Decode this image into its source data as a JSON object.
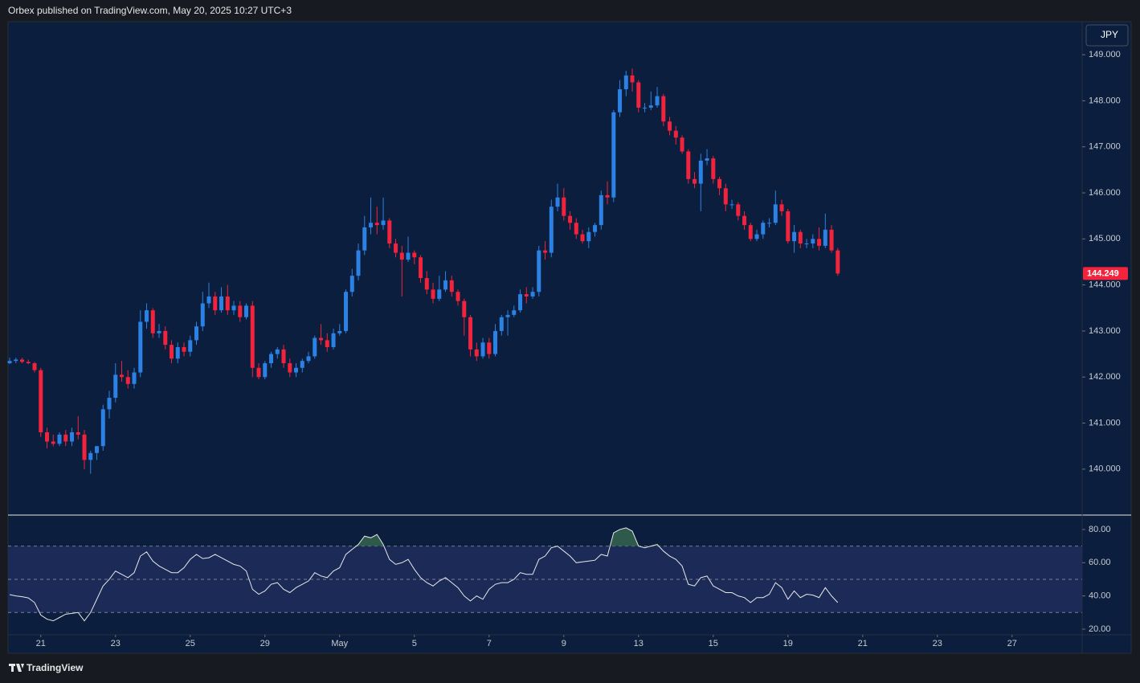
{
  "header": {
    "text": "Orbex published on TradingView.com, May 20, 2025 10:27 UTC+3"
  },
  "footer": {
    "brand": "TradingView"
  },
  "chart_data": [
    {
      "type": "candlestick",
      "currency": "JPY",
      "up_color": "#2b82e4",
      "down_color": "#f2233c",
      "xlim": [
        -0.26,
        172.25
      ],
      "ylim": [
        139.02,
        149.7
      ],
      "yticks": [
        {
          "value": 140,
          "label": "140.000"
        },
        {
          "value": 141,
          "label": "141.000"
        },
        {
          "value": 142,
          "label": "142.000"
        },
        {
          "value": 143,
          "label": "143.000"
        },
        {
          "value": 144,
          "label": "144.000"
        },
        {
          "value": 145,
          "label": "145.000"
        },
        {
          "value": 146,
          "label": "146.000"
        },
        {
          "value": 147,
          "label": "147.000"
        },
        {
          "value": 148,
          "label": "148.000"
        },
        {
          "value": 149,
          "label": "149.000"
        }
      ],
      "open": [
        142.3,
        142.35,
        142.38,
        142.33,
        142.3,
        142.15,
        140.8,
        140.6,
        140.55,
        140.75,
        140.6,
        140.8,
        140.75,
        140.2,
        140.35,
        140.5,
        141.3,
        141.55,
        142.05,
        142.0,
        141.85,
        142.1,
        143.2,
        143.45,
        142.95,
        143.0,
        142.7,
        142.4,
        142.65,
        142.55,
        142.8,
        143.1,
        143.6,
        143.75,
        143.45,
        143.75,
        143.45,
        143.55,
        143.3,
        143.55,
        142.2,
        142.0,
        142.3,
        142.5,
        142.6,
        142.3,
        142.1,
        142.2,
        142.35,
        142.45,
        142.85,
        142.8,
        142.65,
        142.95,
        143.0,
        143.85,
        144.2,
        144.75,
        145.25,
        145.35,
        145.3,
        145.4,
        144.9,
        144.7,
        144.55,
        144.7,
        144.6,
        144.15,
        143.9,
        143.7,
        143.9,
        144.1,
        143.85,
        143.65,
        143.3,
        142.6,
        142.45,
        142.75,
        142.5,
        143.0,
        143.3,
        143.35,
        143.45,
        143.8,
        143.75,
        143.85,
        144.75,
        144.7,
        145.7,
        145.9,
        145.5,
        145.35,
        145.1,
        144.95,
        145.15,
        145.3,
        145.95,
        145.9,
        147.75,
        148.25,
        148.55,
        148.4,
        147.85,
        147.85,
        147.9,
        148.1,
        147.55,
        147.35,
        147.2,
        146.9,
        146.3,
        146.2,
        146.7,
        146.75,
        146.3,
        146.1,
        145.75,
        145.75,
        145.5,
        145.3,
        145.0,
        145.1,
        145.35,
        145.35,
        145.75,
        145.6,
        144.95,
        145.15,
        144.9,
        144.9,
        145.0,
        144.85,
        145.2,
        144.75
      ],
      "high": [
        142.42,
        142.42,
        142.42,
        142.38,
        142.33,
        142.2,
        140.9,
        140.75,
        140.8,
        140.85,
        140.9,
        141.15,
        140.85,
        140.4,
        140.5,
        141.4,
        141.7,
        142.3,
        142.35,
        142.15,
        142.2,
        143.45,
        143.6,
        143.5,
        143.15,
        143.1,
        142.8,
        142.75,
        142.75,
        142.9,
        143.2,
        143.85,
        144.05,
        143.85,
        143.95,
        144.0,
        143.65,
        143.65,
        143.6,
        143.65,
        142.3,
        142.35,
        142.55,
        142.65,
        142.7,
        142.4,
        142.3,
        142.4,
        142.55,
        142.9,
        143.15,
        142.95,
        143.05,
        143.15,
        143.9,
        144.35,
        144.9,
        145.5,
        145.9,
        145.7,
        145.9,
        145.45,
        145.0,
        144.85,
        145.05,
        144.75,
        144.65,
        144.3,
        144.05,
        144.2,
        144.3,
        144.2,
        143.9,
        143.7,
        143.35,
        142.75,
        142.85,
        142.85,
        143.15,
        143.35,
        143.45,
        143.55,
        143.9,
        143.95,
        143.95,
        144.85,
        144.95,
        145.85,
        146.2,
        146.1,
        145.6,
        145.45,
        145.2,
        145.25,
        145.35,
        146.05,
        146.25,
        147.8,
        148.45,
        148.65,
        148.7,
        148.45,
        147.95,
        148.2,
        148.3,
        148.15,
        147.65,
        147.45,
        147.25,
        146.95,
        146.45,
        146.85,
        146.95,
        146.8,
        146.35,
        146.2,
        145.85,
        145.8,
        145.6,
        145.35,
        145.2,
        145.4,
        145.45,
        146.05,
        145.85,
        145.65,
        145.3,
        145.2,
        145.0,
        145.1,
        145.25,
        145.55,
        145.3,
        144.8
      ],
      "low": [
        142.28,
        142.3,
        142.3,
        142.28,
        142.1,
        140.7,
        140.45,
        140.5,
        140.5,
        140.5,
        140.5,
        140.65,
        140.0,
        139.9,
        140.2,
        140.4,
        141.1,
        141.45,
        141.9,
        141.75,
        141.75,
        142.0,
        143.05,
        142.85,
        142.85,
        142.6,
        142.3,
        142.3,
        142.45,
        142.45,
        142.7,
        143.0,
        143.5,
        143.35,
        143.4,
        143.35,
        143.35,
        143.2,
        143.25,
        142.0,
        141.95,
        141.95,
        142.2,
        142.4,
        142.2,
        142.0,
        142.0,
        142.1,
        142.3,
        142.4,
        142.7,
        142.55,
        142.6,
        142.9,
        142.95,
        143.75,
        144.1,
        144.65,
        145.1,
        145.1,
        145.2,
        144.8,
        144.6,
        143.75,
        144.5,
        144.45,
        144.05,
        143.8,
        143.6,
        143.65,
        143.85,
        143.75,
        143.55,
        142.9,
        142.45,
        142.35,
        142.4,
        142.4,
        142.45,
        142.9,
        142.9,
        143.3,
        143.4,
        143.6,
        143.7,
        143.75,
        144.55,
        144.6,
        145.6,
        145.4,
        145.2,
        145.0,
        144.9,
        144.8,
        145.05,
        145.2,
        145.75,
        145.8,
        147.65,
        148.1,
        148.2,
        147.75,
        147.75,
        147.8,
        147.85,
        147.45,
        147.25,
        147.05,
        146.85,
        146.2,
        146.1,
        145.6,
        146.6,
        146.2,
        145.95,
        145.6,
        145.65,
        145.4,
        145.2,
        144.95,
        144.95,
        145.0,
        145.25,
        145.3,
        145.5,
        144.9,
        144.7,
        144.8,
        144.8,
        144.8,
        144.75,
        144.8,
        144.7,
        144.2
      ],
      "close": [
        142.35,
        142.38,
        142.33,
        142.3,
        142.15,
        140.8,
        140.6,
        140.55,
        140.75,
        140.6,
        140.8,
        140.75,
        140.2,
        140.35,
        140.5,
        141.3,
        141.55,
        142.05,
        142.0,
        141.85,
        142.1,
        143.2,
        143.45,
        142.95,
        143.0,
        142.7,
        142.4,
        142.65,
        142.55,
        142.8,
        143.1,
        143.6,
        143.75,
        143.45,
        143.75,
        143.45,
        143.55,
        143.3,
        143.55,
        142.2,
        142.0,
        142.3,
        142.5,
        142.6,
        142.3,
        142.1,
        142.2,
        142.35,
        142.45,
        142.85,
        142.8,
        142.65,
        142.95,
        143.0,
        143.85,
        144.2,
        144.75,
        145.25,
        145.35,
        145.3,
        145.4,
        144.9,
        144.7,
        144.55,
        144.7,
        144.6,
        144.15,
        143.9,
        143.7,
        143.9,
        144.1,
        143.85,
        143.65,
        143.3,
        142.6,
        142.45,
        142.75,
        142.5,
        143.0,
        143.3,
        143.35,
        143.45,
        143.8,
        143.75,
        143.85,
        144.75,
        144.7,
        145.7,
        145.9,
        145.5,
        145.35,
        145.1,
        144.95,
        145.15,
        145.3,
        145.95,
        145.9,
        147.75,
        148.25,
        148.55,
        148.4,
        147.85,
        147.85,
        147.9,
        148.1,
        147.55,
        147.35,
        147.2,
        146.9,
        146.3,
        146.2,
        146.7,
        146.75,
        146.3,
        146.1,
        145.75,
        145.75,
        145.5,
        145.3,
        145.0,
        145.1,
        145.35,
        145.35,
        145.75,
        145.6,
        144.95,
        145.15,
        144.9,
        144.9,
        145.0,
        144.85,
        145.2,
        144.75,
        144.249
      ]
    },
    {
      "type": "line",
      "color": "#e8e8e8",
      "band_color": "#1b2a57",
      "overbought_color": "#2e5a4c",
      "xlim": [
        -0.26,
        172.25
      ],
      "ylim": [
        16.6,
        88.2
      ],
      "levels": [
        30,
        50,
        70
      ],
      "yticks": [
        {
          "value": 20,
          "label": "20.00"
        },
        {
          "value": 40,
          "label": "40.00"
        },
        {
          "value": 60,
          "label": "60.00"
        },
        {
          "value": 80,
          "label": "80.00"
        }
      ],
      "xticks": [
        {
          "value": 5,
          "label": "21"
        },
        {
          "value": 17,
          "label": "23"
        },
        {
          "value": 29,
          "label": "25"
        },
        {
          "value": 41,
          "label": "29"
        },
        {
          "value": 53,
          "label": "May"
        },
        {
          "value": 65,
          "label": "5"
        },
        {
          "value": 77,
          "label": "7"
        },
        {
          "value": 89,
          "label": "9"
        },
        {
          "value": 101,
          "label": "13"
        },
        {
          "value": 113,
          "label": "15"
        },
        {
          "value": 125,
          "label": "19"
        },
        {
          "value": 137,
          "label": "21"
        },
        {
          "value": 149,
          "label": "23"
        },
        {
          "value": 161,
          "label": "27"
        }
      ],
      "values": [
        40.8,
        40,
        39.5,
        38.8,
        36,
        28.5,
        26,
        25,
        27,
        29,
        29.5,
        30,
        25,
        30,
        38,
        46,
        50,
        55,
        53,
        51,
        54,
        64,
        66.5,
        61,
        58,
        56,
        54,
        54,
        57,
        62,
        65,
        62.5,
        63,
        65,
        63,
        61,
        59,
        58,
        55,
        44,
        41,
        43,
        47,
        48,
        44,
        42,
        45,
        47,
        49,
        54,
        52,
        51,
        55,
        57,
        65,
        68,
        71,
        76,
        75,
        77,
        71,
        62,
        59,
        60,
        62,
        56,
        51,
        48,
        46,
        49,
        51,
        48,
        45,
        40,
        37,
        40,
        38,
        44,
        47,
        48,
        48,
        50,
        54,
        53,
        53,
        62,
        64,
        69,
        70,
        67,
        64,
        60,
        60.5,
        61,
        61.5,
        65,
        64,
        78,
        80,
        81,
        79,
        70,
        69,
        70,
        71,
        67,
        64,
        62,
        58,
        47,
        46,
        51,
        52,
        46,
        44,
        42,
        42,
        40,
        39,
        36,
        39,
        39,
        41,
        48,
        45,
        38,
        43,
        39,
        41,
        40.5,
        39,
        45,
        40,
        36
      ]
    }
  ]
}
